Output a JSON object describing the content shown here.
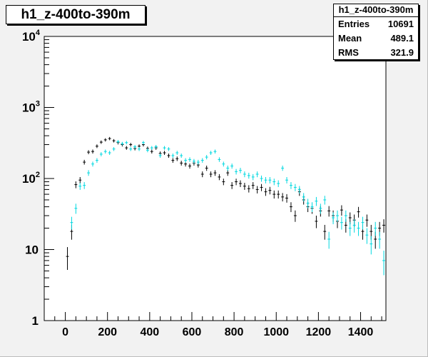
{
  "title": "h1_z-400to-390m",
  "stats": {
    "title": "h1_z-400to-390m",
    "rows": [
      {
        "label": "Entries",
        "value": "10691"
      },
      {
        "label": "Mean",
        "value": "489.1"
      },
      {
        "label": "RMS",
        "value": "321.9"
      }
    ]
  },
  "colors": {
    "frame_bg": "#f2f2f2",
    "plot_bg": "#ffffff",
    "series_black": "#000000",
    "series_cyan": "#00d8e0"
  },
  "chart_data": {
    "type": "scatter",
    "title": "h1_z-400to-390m",
    "xlabel": "",
    "ylabel": "",
    "xlim": [
      -100,
      1520
    ],
    "ylim": [
      1,
      10000
    ],
    "ylog": true,
    "xticks": [
      0,
      200,
      400,
      600,
      800,
      1000,
      1200,
      1400
    ],
    "yticks": [
      {
        "value": 1,
        "base": "1",
        "exp": ""
      },
      {
        "value": 10,
        "base": "10",
        "exp": ""
      },
      {
        "value": 100,
        "base": "10",
        "exp": "2"
      },
      {
        "value": 1000,
        "base": "10",
        "exp": "3"
      },
      {
        "value": 10000,
        "base": "10",
        "exp": "4"
      }
    ],
    "grid": false,
    "series": [
      {
        "color": "#000000",
        "points": [
          [
            10,
            8
          ],
          [
            30,
            18
          ],
          [
            50,
            82
          ],
          [
            70,
            95
          ],
          [
            90,
            170
          ],
          [
            110,
            235
          ],
          [
            130,
            240
          ],
          [
            150,
            285
          ],
          [
            170,
            325
          ],
          [
            190,
            350
          ],
          [
            210,
            365
          ],
          [
            230,
            340
          ],
          [
            250,
            320
          ],
          [
            270,
            300
          ],
          [
            290,
            270
          ],
          [
            310,
            300
          ],
          [
            330,
            265
          ],
          [
            350,
            285
          ],
          [
            370,
            300
          ],
          [
            390,
            265
          ],
          [
            410,
            240
          ],
          [
            430,
            270
          ],
          [
            450,
            225
          ],
          [
            470,
            230
          ],
          [
            490,
            210
          ],
          [
            510,
            180
          ],
          [
            530,
            190
          ],
          [
            550,
            165
          ],
          [
            570,
            160
          ],
          [
            590,
            150
          ],
          [
            610,
            165
          ],
          [
            630,
            155
          ],
          [
            650,
            115
          ],
          [
            670,
            140
          ],
          [
            690,
            115
          ],
          [
            710,
            120
          ],
          [
            730,
            105
          ],
          [
            750,
            90
          ],
          [
            770,
            120
          ],
          [
            790,
            80
          ],
          [
            810,
            90
          ],
          [
            830,
            85
          ],
          [
            850,
            78
          ],
          [
            870,
            72
          ],
          [
            890,
            80
          ],
          [
            910,
            70
          ],
          [
            930,
            75
          ],
          [
            950,
            65
          ],
          [
            970,
            68
          ],
          [
            990,
            60
          ],
          [
            1010,
            60
          ],
          [
            1030,
            55
          ],
          [
            1050,
            53
          ],
          [
            1070,
            40
          ],
          [
            1090,
            30
          ],
          [
            1110,
            65
          ],
          [
            1130,
            50
          ],
          [
            1150,
            40
          ],
          [
            1170,
            38
          ],
          [
            1190,
            25
          ],
          [
            1210,
            35
          ],
          [
            1230,
            18
          ],
          [
            1250,
            35
          ],
          [
            1270,
            30
          ],
          [
            1290,
            25
          ],
          [
            1310,
            36
          ],
          [
            1330,
            22
          ],
          [
            1350,
            28
          ],
          [
            1370,
            26
          ],
          [
            1390,
            34
          ],
          [
            1410,
            18
          ],
          [
            1430,
            26
          ],
          [
            1450,
            18
          ],
          [
            1470,
            14
          ],
          [
            1490,
            20
          ],
          [
            1510,
            22
          ]
        ]
      },
      {
        "color": "#00d8e0",
        "points": [
          [
            30,
            24
          ],
          [
            50,
            38
          ],
          [
            70,
            78
          ],
          [
            90,
            80
          ],
          [
            110,
            120
          ],
          [
            130,
            160
          ],
          [
            150,
            180
          ],
          [
            170,
            220
          ],
          [
            190,
            240
          ],
          [
            210,
            230
          ],
          [
            230,
            260
          ],
          [
            250,
            330
          ],
          [
            270,
            310
          ],
          [
            290,
            320
          ],
          [
            310,
            260
          ],
          [
            330,
            280
          ],
          [
            350,
            260
          ],
          [
            370,
            320
          ],
          [
            390,
            250
          ],
          [
            410,
            270
          ],
          [
            430,
            280
          ],
          [
            450,
            210
          ],
          [
            470,
            270
          ],
          [
            490,
            260
          ],
          [
            510,
            210
          ],
          [
            530,
            230
          ],
          [
            550,
            210
          ],
          [
            570,
            180
          ],
          [
            590,
            185
          ],
          [
            610,
            175
          ],
          [
            630,
            170
          ],
          [
            650,
            180
          ],
          [
            670,
            200
          ],
          [
            690,
            230
          ],
          [
            710,
            240
          ],
          [
            730,
            185
          ],
          [
            750,
            160
          ],
          [
            770,
            140
          ],
          [
            790,
            150
          ],
          [
            810,
            125
          ],
          [
            830,
            130
          ],
          [
            850,
            115
          ],
          [
            870,
            110
          ],
          [
            890,
            105
          ],
          [
            910,
            115
          ],
          [
            930,
            100
          ],
          [
            950,
            95
          ],
          [
            970,
            95
          ],
          [
            990,
            90
          ],
          [
            1010,
            85
          ],
          [
            1030,
            140
          ],
          [
            1050,
            95
          ],
          [
            1070,
            80
          ],
          [
            1090,
            75
          ],
          [
            1110,
            70
          ],
          [
            1130,
            55
          ],
          [
            1150,
            45
          ],
          [
            1170,
            40
          ],
          [
            1190,
            48
          ],
          [
            1210,
            38
          ],
          [
            1230,
            50
          ],
          [
            1250,
            14
          ],
          [
            1270,
            28
          ],
          [
            1290,
            30
          ],
          [
            1310,
            24
          ],
          [
            1330,
            30
          ],
          [
            1350,
            20
          ],
          [
            1370,
            22
          ],
          [
            1390,
            20
          ],
          [
            1410,
            24
          ],
          [
            1430,
            16
          ],
          [
            1450,
            12
          ],
          [
            1470,
            20
          ],
          [
            1490,
            14
          ],
          [
            1510,
            7
          ]
        ]
      }
    ]
  }
}
